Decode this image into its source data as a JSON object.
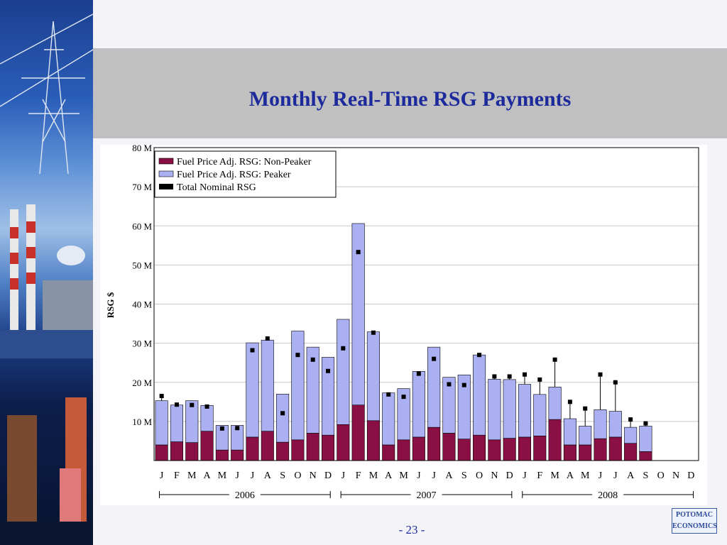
{
  "slide": {
    "title": "Monthly Real-Time RSG Payments",
    "page_number": "- 23 -",
    "logo_line1": "POTOMAC",
    "logo_line2": "ECONOMICS"
  },
  "colors": {
    "title": "#1c2a9c",
    "non_peaker": "#8a0f45",
    "peaker": "#aab0f2",
    "total": "#000000",
    "band": "#c0c0c0"
  },
  "chart_data": {
    "type": "bar",
    "ylabel": "RSG $",
    "ylim": [
      0,
      80
    ],
    "yticks": [
      "10 M",
      "20 M",
      "30 M",
      "40 M",
      "50 M",
      "60 M",
      "70 M",
      "80 M"
    ],
    "grid": true,
    "legend_position": "top-left",
    "categories": [
      "J",
      "F",
      "M",
      "A",
      "M",
      "J",
      "J",
      "A",
      "S",
      "O",
      "N",
      "D",
      "J",
      "F",
      "M",
      "A",
      "M",
      "J",
      "J",
      "A",
      "S",
      "O",
      "N",
      "D",
      "J",
      "F",
      "M",
      "A",
      "M",
      "J",
      "J",
      "A",
      "S",
      "O",
      "N",
      "D"
    ],
    "year_labels": [
      "2006",
      "2007",
      "2008"
    ],
    "series": [
      {
        "name": "Fuel Price Adj. RSG: Non-Peaker",
        "values": [
          4,
          4.8,
          4.6,
          7.5,
          2.7,
          2.7,
          6,
          7.5,
          4.7,
          5.3,
          7,
          6.5,
          9.2,
          14.2,
          10.2,
          4,
          5.3,
          6,
          8.5,
          7,
          5.5,
          6.5,
          5.3,
          5.7,
          6,
          6.3,
          10.5,
          4,
          4,
          5.6,
          6,
          4.4,
          2.3,
          null,
          null,
          null
        ]
      },
      {
        "name": "Fuel Price Adj. RSG: Peaker",
        "values": [
          11.3,
          9.4,
          10.7,
          6.6,
          6.3,
          6.3,
          24.1,
          23.3,
          12.3,
          27.8,
          22,
          19.9,
          26.9,
          46.4,
          22.7,
          13.3,
          13.1,
          16.8,
          20.5,
          14.3,
          16.4,
          20.5,
          15.5,
          15,
          13.5,
          10.6,
          8.3,
          6.7,
          4.8,
          7.4,
          6.6,
          4.1,
          6.5,
          null,
          null,
          null
        ]
      },
      {
        "name": "Total Nominal RSG",
        "values": [
          16.5,
          14.3,
          14.2,
          13.8,
          8.2,
          8.3,
          28.2,
          31.2,
          12.1,
          27,
          25.8,
          22.9,
          28.7,
          53.3,
          32.7,
          16.9,
          16.3,
          22.2,
          26,
          19.5,
          19.3,
          27,
          21.5,
          21.5,
          22,
          20.7,
          25.8,
          15,
          13.3,
          22,
          20,
          10.5,
          9.5,
          null,
          null,
          null
        ]
      }
    ]
  }
}
